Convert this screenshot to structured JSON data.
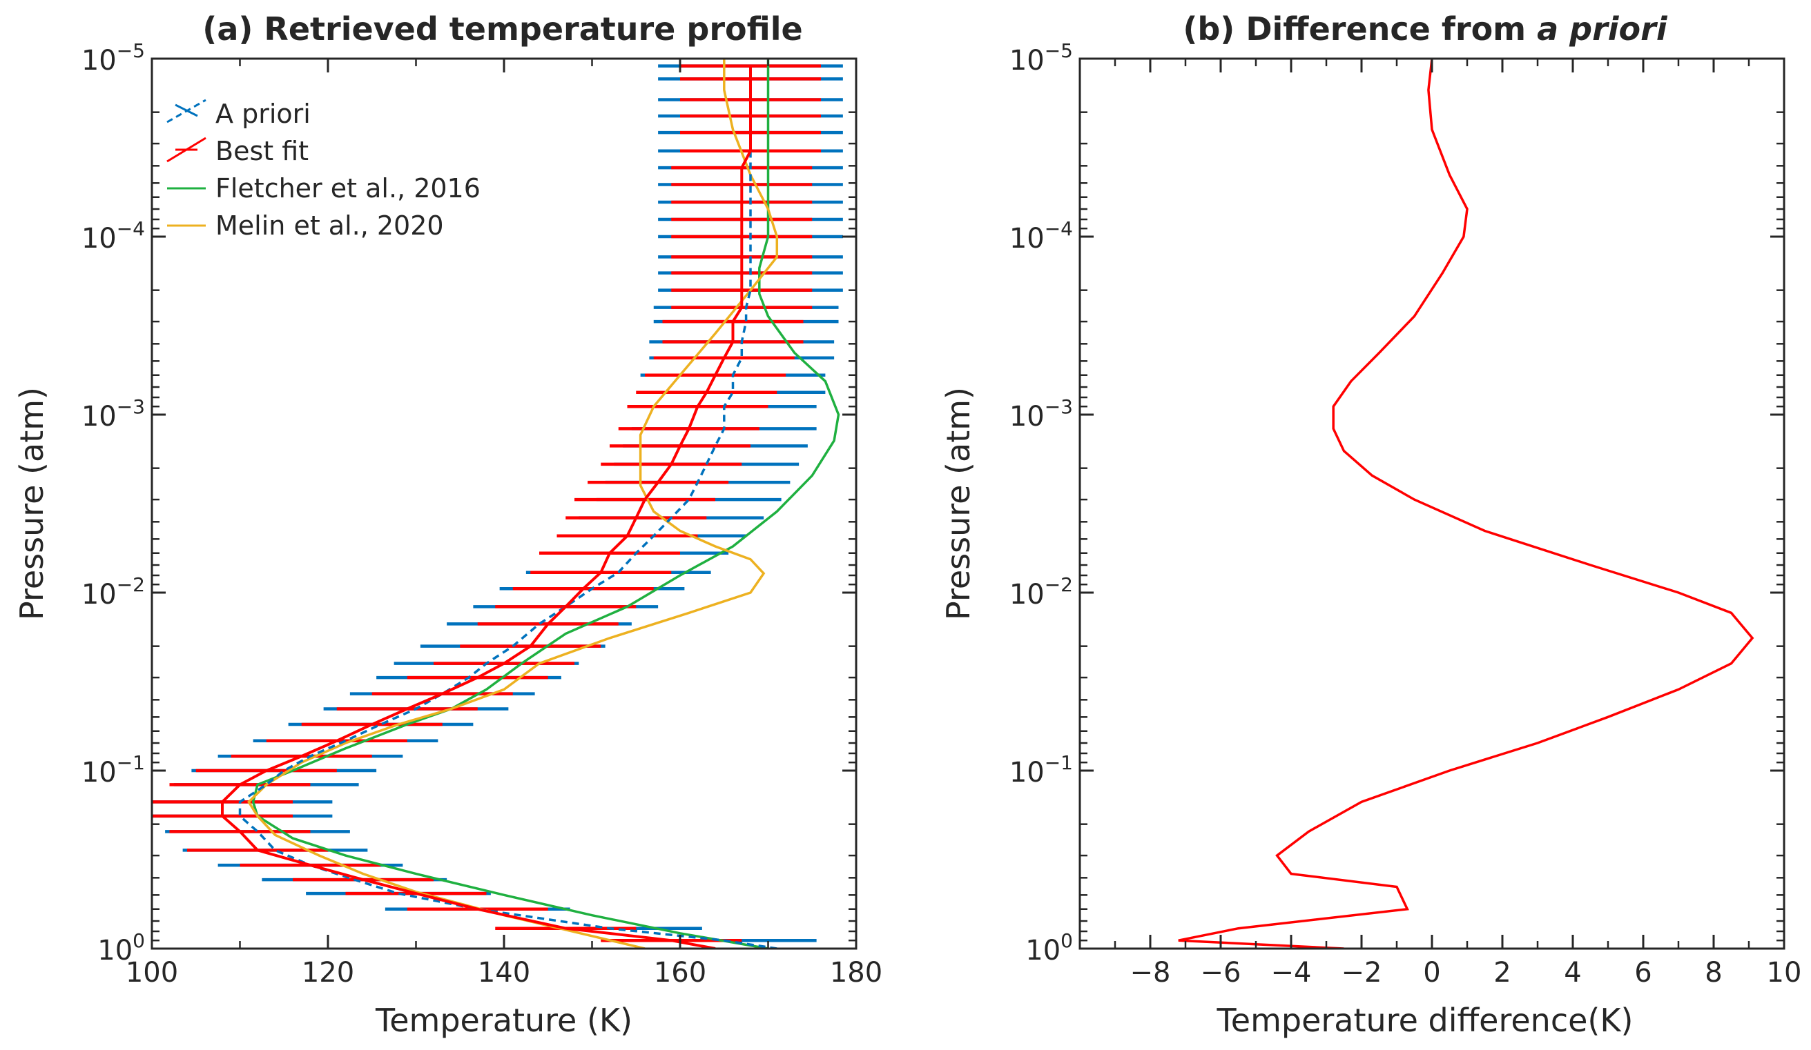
{
  "chart_data": [
    {
      "type": "line",
      "title_prefix": "(a)",
      "title_main": "Retrieved temperature profile",
      "xlabel": "Temperature (K)",
      "ylabel": "Pressure (atm)",
      "xlim": [
        100,
        180
      ],
      "xticks": [
        100,
        120,
        140,
        160,
        180
      ],
      "ylim": [
        1,
        1e-05
      ],
      "yscale": "log",
      "legend_position": "top-left",
      "series": [
        {
          "name": "A priori",
          "color": "#0072BD",
          "dash": true,
          "errorbar_halfwidth": 10.5,
          "points": [
            [
              171,
              1
            ],
            [
              165,
              0.9
            ],
            [
              152,
              0.77
            ],
            [
              137,
              0.6
            ],
            [
              128,
              0.49
            ],
            [
              123,
              0.41
            ],
            [
              118,
              0.34
            ],
            [
              114,
              0.28
            ],
            [
              112,
              0.22
            ],
            [
              110,
              0.18
            ],
            [
              110,
              0.15
            ],
            [
              113,
              0.12
            ],
            [
              115,
              0.1
            ],
            [
              118,
              0.083
            ],
            [
              122,
              0.068
            ],
            [
              126,
              0.055
            ],
            [
              130,
              0.045
            ],
            [
              133,
              0.037
            ],
            [
              136,
              0.03
            ],
            [
              138,
              0.025
            ],
            [
              141,
              0.02
            ],
            [
              144,
              0.015
            ],
            [
              147,
              0.012
            ],
            [
              150,
              0.0095
            ],
            [
              153,
              0.0077
            ],
            [
              155,
              0.006
            ],
            [
              157,
              0.0048
            ],
            [
              159,
              0.0038
            ],
            [
              161,
              0.003
            ],
            [
              162,
              0.0024
            ],
            [
              163,
              0.0019
            ],
            [
              164,
              0.0015
            ],
            [
              165,
              0.0012
            ],
            [
              165,
              0.0009
            ],
            [
              166,
              0.00075
            ],
            [
              166,
              0.0006
            ],
            [
              167,
              0.00048
            ],
            [
              167,
              0.00039
            ],
            [
              167.5,
              0.0003
            ],
            [
              167.5,
              0.00025
            ],
            [
              168,
              0.0002
            ],
            [
              168,
              0.00016
            ],
            [
              168,
              0.00013
            ],
            [
              168,
              0.0001
            ],
            [
              168,
              8e-05
            ],
            [
              168,
              6.4e-05
            ],
            [
              168,
              5.1e-05
            ],
            [
              168,
              4.1e-05
            ],
            [
              168,
              3.3e-05
            ],
            [
              168,
              2.6e-05
            ],
            [
              168,
              2.1e-05
            ],
            [
              168,
              1.7e-05
            ],
            [
              168,
              1.3e-05
            ],
            [
              168,
              1.1e-05
            ]
          ]
        },
        {
          "name": "Best fit",
          "color": "#FF0000",
          "dash": false,
          "errorbar_halfwidth": 8,
          "points": [
            [
              164,
              1
            ],
            [
              159,
              0.9
            ],
            [
              147,
              0.77
            ],
            [
              137,
              0.6
            ],
            [
              130,
              0.49
            ],
            [
              124,
              0.41
            ],
            [
              118,
              0.34
            ],
            [
              112,
              0.28
            ],
            [
              110,
              0.22
            ],
            [
              108,
              0.18
            ],
            [
              108,
              0.15
            ],
            [
              110,
              0.12
            ],
            [
              113,
              0.1
            ],
            [
              117,
              0.083
            ],
            [
              121,
              0.068
            ],
            [
              125,
              0.055
            ],
            [
              129,
              0.045
            ],
            [
              133,
              0.037
            ],
            [
              137,
              0.03
            ],
            [
              140,
              0.025
            ],
            [
              143,
              0.02
            ],
            [
              145,
              0.015
            ],
            [
              147,
              0.012
            ],
            [
              149,
              0.0095
            ],
            [
              151,
              0.0077
            ],
            [
              152,
              0.006
            ],
            [
              154,
              0.0048
            ],
            [
              155,
              0.0038
            ],
            [
              156,
              0.003
            ],
            [
              157.5,
              0.0024
            ],
            [
              159,
              0.0019
            ],
            [
              160,
              0.0015
            ],
            [
              161,
              0.0012
            ],
            [
              162,
              0.0009
            ],
            [
              163,
              0.00075
            ],
            [
              164,
              0.0006
            ],
            [
              165,
              0.00048
            ],
            [
              166,
              0.00039
            ],
            [
              166,
              0.0003
            ],
            [
              167,
              0.00025
            ],
            [
              167,
              0.0002
            ],
            [
              167,
              0.00016
            ],
            [
              167,
              0.00013
            ],
            [
              167,
              0.0001
            ],
            [
              167,
              8e-05
            ],
            [
              167,
              6.4e-05
            ],
            [
              167,
              5.1e-05
            ],
            [
              167,
              4.1e-05
            ],
            [
              168,
              3.3e-05
            ],
            [
              168,
              2.6e-05
            ],
            [
              168,
              2.1e-05
            ],
            [
              168,
              1.7e-05
            ],
            [
              168,
              1.3e-05
            ],
            [
              168,
              1.1e-05
            ]
          ]
        },
        {
          "name": "Fletcher et al., 2016",
          "color": "#1FB040",
          "dash": false,
          "points": [
            [
              170,
              1
            ],
            [
              160,
              0.82
            ],
            [
              150,
              0.65
            ],
            [
              140,
              0.5
            ],
            [
              130,
              0.38
            ],
            [
              122,
              0.3
            ],
            [
              116,
              0.24
            ],
            [
              112,
              0.18
            ],
            [
              111.5,
              0.15
            ],
            [
              112,
              0.12
            ],
            [
              116,
              0.1
            ],
            [
              122,
              0.075
            ],
            [
              129,
              0.055
            ],
            [
              134,
              0.045
            ],
            [
              138,
              0.035
            ],
            [
              142,
              0.025
            ],
            [
              147,
              0.017
            ],
            [
              154,
              0.012
            ],
            [
              160,
              0.008
            ],
            [
              166,
              0.0055
            ],
            [
              171,
              0.0035
            ],
            [
              175,
              0.0022
            ],
            [
              177.5,
              0.0014
            ],
            [
              178,
              0.001
            ],
            [
              176.5,
              0.00065
            ],
            [
              173,
              0.00045
            ],
            [
              170,
              0.00028
            ],
            [
              169,
              0.00021
            ],
            [
              169,
              0.00015
            ],
            [
              170,
              0.0001
            ],
            [
              170,
              6e-05
            ],
            [
              170,
              3e-05
            ],
            [
              170,
              1e-05
            ]
          ]
        },
        {
          "name": "Melin et al., 2020",
          "color": "#EDB120",
          "dash": false,
          "points": [
            [
              156,
              1
            ],
            [
              150,
              0.85
            ],
            [
              140,
              0.65
            ],
            [
              130,
              0.48
            ],
            [
              124,
              0.38
            ],
            [
              119,
              0.3
            ],
            [
              114,
              0.23
            ],
            [
              112,
              0.18
            ],
            [
              111,
              0.15
            ],
            [
              113,
              0.12
            ],
            [
              117,
              0.09
            ],
            [
              122,
              0.07
            ],
            [
              128,
              0.055
            ],
            [
              134,
              0.045
            ],
            [
              140,
              0.035
            ],
            [
              144,
              0.025
            ],
            [
              152,
              0.018
            ],
            [
              161,
              0.013
            ],
            [
              168,
              0.01
            ],
            [
              169.5,
              0.0078
            ],
            [
              168,
              0.0065
            ],
            [
              164,
              0.0055
            ],
            [
              160,
              0.0045
            ],
            [
              157,
              0.0035
            ],
            [
              155.5,
              0.0025
            ],
            [
              155.5,
              0.0013
            ],
            [
              157,
              0.0009
            ],
            [
              160,
              0.0006
            ],
            [
              164,
              0.00035
            ],
            [
              168,
              0.0002
            ],
            [
              171,
              0.00013
            ],
            [
              171,
              0.0001
            ],
            [
              170,
              7e-05
            ],
            [
              168,
              4.5e-05
            ],
            [
              166,
              2.5e-05
            ],
            [
              165,
              1.5e-05
            ],
            [
              165,
              1e-05
            ]
          ]
        }
      ]
    },
    {
      "type": "line",
      "title_prefix": "(b) Difference from",
      "title_emph": "a priori",
      "xlabel": "Temperature difference(K)",
      "ylabel": "Pressure (atm)",
      "xlim": [
        -10,
        10
      ],
      "xticks": [
        -8,
        -6,
        -4,
        -2,
        0,
        2,
        4,
        6,
        8,
        10
      ],
      "ylim": [
        1,
        1e-05
      ],
      "yscale": "log",
      "series": [
        {
          "name": "Difference",
          "color": "#FF0000",
          "points": [
            [
              -2.5,
              1
            ],
            [
              -7.2,
              0.9
            ],
            [
              -5.5,
              0.77
            ],
            [
              -0.7,
              0.6
            ],
            [
              -1,
              0.45
            ],
            [
              -4,
              0.38
            ],
            [
              -4.4,
              0.3
            ],
            [
              -3.5,
              0.22
            ],
            [
              -2,
              0.15
            ],
            [
              0.5,
              0.1
            ],
            [
              3,
              0.07
            ],
            [
              5,
              0.05
            ],
            [
              7,
              0.035
            ],
            [
              8.5,
              0.025
            ],
            [
              9.1,
              0.018
            ],
            [
              8.5,
              0.013
            ],
            [
              7,
              0.01
            ],
            [
              4.5,
              0.007
            ],
            [
              1.5,
              0.0045
            ],
            [
              -0.5,
              0.003
            ],
            [
              -1.7,
              0.0022
            ],
            [
              -2.5,
              0.0016
            ],
            [
              -2.8,
              0.0012
            ],
            [
              -2.8,
              0.0009
            ],
            [
              -2.3,
              0.00065
            ],
            [
              -1.5,
              0.00045
            ],
            [
              -0.5,
              0.00028
            ],
            [
              0.3,
              0.00016
            ],
            [
              0.9,
              0.0001
            ],
            [
              1,
              7e-05
            ],
            [
              0.5,
              4.5e-05
            ],
            [
              0,
              2.5e-05
            ],
            [
              -0.1,
              1.5e-05
            ],
            [
              0,
              1e-05
            ]
          ]
        }
      ]
    }
  ]
}
